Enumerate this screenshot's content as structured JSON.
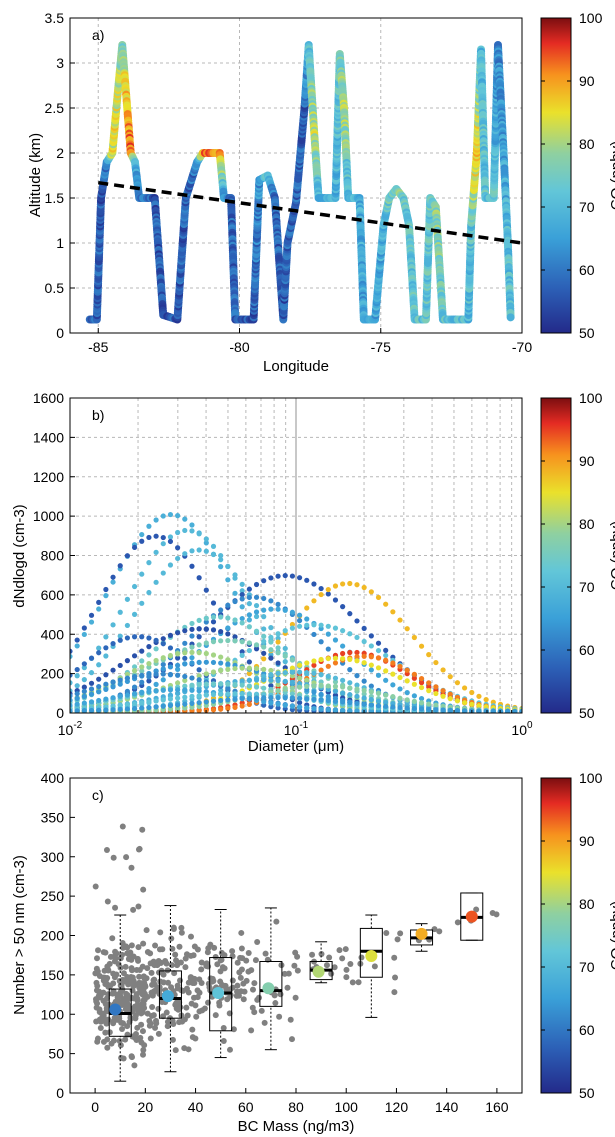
{
  "chart_data": [
    {
      "panel_label": "a)",
      "type": "scatter",
      "title": "",
      "xlabel": "Longitude",
      "ylabel": "Altitude (km)",
      "xlim": [
        -86,
        -70
      ],
      "ylim": [
        0,
        3.5
      ],
      "xticks": [
        -85,
        -80,
        -75,
        -70
      ],
      "yticks": [
        0,
        0.5,
        1,
        1.5,
        2,
        2.5,
        3,
        3.5
      ],
      "grid": true,
      "colorbar": {
        "label": "CO (ppbv)",
        "range": [
          50,
          100
        ],
        "ticks": [
          50,
          60,
          70,
          80,
          90,
          100
        ]
      },
      "flight_track": [
        {
          "x": -85.3,
          "y": 0.15,
          "co": 57
        },
        {
          "x": -85.05,
          "y": 0.15,
          "co": 56
        },
        {
          "x": -85.0,
          "y": 0.6,
          "co": 57
        },
        {
          "x": -84.9,
          "y": 1.5,
          "co": 56
        },
        {
          "x": -84.7,
          "y": 1.9,
          "co": 62
        },
        {
          "x": -84.5,
          "y": 2.0,
          "co": 84
        },
        {
          "x": -84.3,
          "y": 2.7,
          "co": 83
        },
        {
          "x": -84.15,
          "y": 3.2,
          "co": 76
        },
        {
          "x": -84.0,
          "y": 2.6,
          "co": 88
        },
        {
          "x": -83.85,
          "y": 2.0,
          "co": 92
        },
        {
          "x": -83.7,
          "y": 1.9,
          "co": 70
        },
        {
          "x": -83.55,
          "y": 1.5,
          "co": 60
        },
        {
          "x": -83.0,
          "y": 1.5,
          "co": 56
        },
        {
          "x": -82.7,
          "y": 0.2,
          "co": 56
        },
        {
          "x": -82.2,
          "y": 0.15,
          "co": 56
        },
        {
          "x": -81.9,
          "y": 1.5,
          "co": 57
        },
        {
          "x": -81.5,
          "y": 1.9,
          "co": 60
        },
        {
          "x": -81.3,
          "y": 2.0,
          "co": 92
        },
        {
          "x": -80.7,
          "y": 2.0,
          "co": 92
        },
        {
          "x": -80.55,
          "y": 1.5,
          "co": 64
        },
        {
          "x": -80.3,
          "y": 1.5,
          "co": 58
        },
        {
          "x": -80.15,
          "y": 0.15,
          "co": 57
        },
        {
          "x": -79.5,
          "y": 0.15,
          "co": 56
        },
        {
          "x": -79.3,
          "y": 1.7,
          "co": 64
        },
        {
          "x": -79.0,
          "y": 1.75,
          "co": 72
        },
        {
          "x": -78.75,
          "y": 1.5,
          "co": 58
        },
        {
          "x": -78.45,
          "y": 0.15,
          "co": 56
        },
        {
          "x": -78.3,
          "y": 1.0,
          "co": 57
        },
        {
          "x": -78.0,
          "y": 1.45,
          "co": 58
        },
        {
          "x": -77.7,
          "y": 2.5,
          "co": 56
        },
        {
          "x": -77.55,
          "y": 3.2,
          "co": 72
        },
        {
          "x": -77.35,
          "y": 2.2,
          "co": 82
        },
        {
          "x": -77.2,
          "y": 1.5,
          "co": 70
        },
        {
          "x": -76.6,
          "y": 1.5,
          "co": 68
        },
        {
          "x": -76.45,
          "y": 3.1,
          "co": 74
        },
        {
          "x": -76.3,
          "y": 2.5,
          "co": 82
        },
        {
          "x": -76.15,
          "y": 1.5,
          "co": 68
        },
        {
          "x": -75.75,
          "y": 1.5,
          "co": 68
        },
        {
          "x": -75.6,
          "y": 0.15,
          "co": 66
        },
        {
          "x": -75.2,
          "y": 0.15,
          "co": 66
        },
        {
          "x": -74.9,
          "y": 1.2,
          "co": 68
        },
        {
          "x": -74.7,
          "y": 1.5,
          "co": 75
        },
        {
          "x": -74.45,
          "y": 1.6,
          "co": 78
        },
        {
          "x": -74.2,
          "y": 1.5,
          "co": 74
        },
        {
          "x": -74.0,
          "y": 1.2,
          "co": 72
        },
        {
          "x": -73.8,
          "y": 0.15,
          "co": 72
        },
        {
          "x": -73.4,
          "y": 0.15,
          "co": 72
        },
        {
          "x": -73.25,
          "y": 1.5,
          "co": 74
        },
        {
          "x": -73.05,
          "y": 1.4,
          "co": 78
        },
        {
          "x": -72.8,
          "y": 0.15,
          "co": 73
        },
        {
          "x": -71.9,
          "y": 0.15,
          "co": 70
        },
        {
          "x": -71.8,
          "y": 1.2,
          "co": 72
        },
        {
          "x": -71.6,
          "y": 2.0,
          "co": 88
        },
        {
          "x": -71.45,
          "y": 3.15,
          "co": 70
        },
        {
          "x": -71.3,
          "y": 1.5,
          "co": 72
        },
        {
          "x": -71.0,
          "y": 1.5,
          "co": 72
        },
        {
          "x": -70.85,
          "y": 3.2,
          "co": 62
        },
        {
          "x": -70.65,
          "y": 2.0,
          "co": 66
        },
        {
          "x": -70.5,
          "y": 1.0,
          "co": 70
        },
        {
          "x": -70.4,
          "y": 0.15,
          "co": 72
        }
      ],
      "trend_line": {
        "x": [
          -85,
          -70
        ],
        "y": [
          1.67,
          1.0
        ],
        "style": "dashed"
      }
    },
    {
      "panel_label": "b)",
      "type": "scatter",
      "title": "",
      "xlabel": "Diameter (μm)",
      "ylabel": "dNdlogd (cm-3)",
      "xscale": "log",
      "xlim": [
        0.01,
        1
      ],
      "ylim": [
        0,
        1600
      ],
      "xticks": [
        "10^-2",
        "10^-1",
        "10^0"
      ],
      "yticks": [
        0,
        200,
        400,
        600,
        800,
        1000,
        1200,
        1400,
        1600
      ],
      "grid": true,
      "colorbar": {
        "label": "CO (ppbv)",
        "range": [
          50,
          100
        ],
        "ticks": [
          50,
          60,
          70,
          80,
          90,
          100
        ]
      },
      "series": [
        {
          "peak_diameter": 0.028,
          "peak": 1000,
          "width": 0.28,
          "co": 68
        },
        {
          "peak_diameter": 0.033,
          "peak": 920,
          "width": 0.27,
          "co": 70
        },
        {
          "peak_diameter": 0.024,
          "peak": 890,
          "width": 0.26,
          "co": 56
        },
        {
          "peak_diameter": 0.037,
          "peak": 820,
          "width": 0.28,
          "co": 70
        },
        {
          "peak_diameter": 0.09,
          "peak": 690,
          "width": 0.35,
          "co": 56
        },
        {
          "peak_diameter": 0.17,
          "peak": 650,
          "width": 0.28,
          "co": 88
        },
        {
          "peak_diameter": 0.065,
          "peak": 580,
          "width": 0.3,
          "co": 62
        },
        {
          "peak_diameter": 0.08,
          "peak": 520,
          "width": 0.32,
          "co": 66
        },
        {
          "peak_diameter": 0.045,
          "peak": 480,
          "width": 0.3,
          "co": 74
        },
        {
          "peak_diameter": 0.12,
          "peak": 440,
          "width": 0.34,
          "co": 72
        },
        {
          "peak_diameter": 0.038,
          "peak": 420,
          "width": 0.33,
          "co": 55
        },
        {
          "peak_diameter": 0.02,
          "peak": 380,
          "width": 0.25,
          "co": 58
        },
        {
          "peak_diameter": 0.05,
          "peak": 360,
          "width": 0.36,
          "co": 76
        },
        {
          "peak_diameter": 0.18,
          "peak": 300,
          "width": 0.25,
          "co": 95
        },
        {
          "peak_diameter": 0.2,
          "peak": 280,
          "width": 0.25,
          "co": 92
        },
        {
          "peak_diameter": 0.15,
          "peak": 270,
          "width": 0.3,
          "co": 85
        },
        {
          "peak_diameter": 0.035,
          "peak": 300,
          "width": 0.3,
          "co": 80
        },
        {
          "peak_diameter": 0.04,
          "peak": 250,
          "width": 0.35,
          "co": 64
        },
        {
          "peak_diameter": 0.06,
          "peak": 220,
          "width": 0.33,
          "co": 80
        },
        {
          "peak_diameter": 0.1,
          "peak": 200,
          "width": 0.3,
          "co": 70
        },
        {
          "peak_diameter": 0.025,
          "peak": 190,
          "width": 0.3,
          "co": 62
        },
        {
          "peak_diameter": 0.07,
          "peak": 160,
          "width": 0.35,
          "co": 68
        },
        {
          "peak_diameter": 0.045,
          "peak": 140,
          "width": 0.35,
          "co": 74
        },
        {
          "peak_diameter": 0.13,
          "peak": 130,
          "width": 0.3,
          "co": 78
        },
        {
          "peak_diameter": 0.03,
          "peak": 110,
          "width": 0.3,
          "co": 66
        },
        {
          "peak_diameter": 0.055,
          "peak": 90,
          "width": 0.35,
          "co": 72
        },
        {
          "peak_diameter": 0.08,
          "peak": 70,
          "width": 0.35,
          "co": 64
        }
      ]
    },
    {
      "panel_label": "c)",
      "type": "scatter",
      "title": "",
      "xlabel": "BC Mass (ng/m3)",
      "ylabel": "Number > 50 nm (cm-3)",
      "xlim": [
        -10,
        170
      ],
      "ylim": [
        0,
        400
      ],
      "xticks": [
        0,
        20,
        40,
        60,
        80,
        100,
        120,
        140,
        160
      ],
      "yticks": [
        0,
        50,
        100,
        150,
        200,
        250,
        300,
        350,
        400
      ],
      "grid": false,
      "colorbar": {
        "label": "CO (ppbv)",
        "range": [
          50,
          100
        ],
        "ticks": [
          50,
          60,
          70,
          80,
          90,
          100
        ]
      },
      "boxes": [
        {
          "bin_center": 10,
          "whisker_low": 15,
          "q1": 72,
          "median": 101,
          "q3": 132,
          "whisker_high": 226
        },
        {
          "bin_center": 30,
          "whisker_low": 27,
          "q1": 95,
          "median": 120,
          "q3": 155,
          "whisker_high": 238
        },
        {
          "bin_center": 50,
          "whisker_low": 45,
          "q1": 79,
          "median": 127,
          "q3": 172,
          "whisker_high": 233
        },
        {
          "bin_center": 70,
          "whisker_low": 55,
          "q1": 110,
          "median": 130,
          "q3": 167,
          "whisker_high": 235
        },
        {
          "bin_center": 90,
          "whisker_low": 140,
          "q1": 144,
          "median": 156,
          "q3": 167,
          "whisker_high": 192
        },
        {
          "bin_center": 110,
          "whisker_low": 96,
          "q1": 147,
          "median": 180,
          "q3": 209,
          "whisker_high": 226
        },
        {
          "bin_center": 130,
          "whisker_low": 180,
          "q1": 188,
          "median": 197,
          "q3": 207,
          "whisker_high": 215
        },
        {
          "bin_center": 150,
          "whisker_low": 194,
          "q1": 194,
          "median": 223,
          "q3": 254,
          "whisker_high": 254
        }
      ],
      "bin_mean_markers": [
        {
          "x": 8,
          "y": 106,
          "co": 60
        },
        {
          "x": 29,
          "y": 123,
          "co": 67
        },
        {
          "x": 49,
          "y": 127,
          "co": 72
        },
        {
          "x": 69,
          "y": 133,
          "co": 77
        },
        {
          "x": 89,
          "y": 154,
          "co": 81
        },
        {
          "x": 110,
          "y": 174,
          "co": 84
        },
        {
          "x": 130,
          "y": 202,
          "co": 89
        },
        {
          "x": 150,
          "y": 224,
          "co": 94
        }
      ],
      "raw_points_color": "#808080"
    }
  ],
  "colormap": [
    "#00008f",
    "#0000ff",
    "#007fff",
    "#00ffff",
    "#7fff7f",
    "#ffff00",
    "#ff7f00",
    "#ff0000",
    "#7f0000"
  ]
}
